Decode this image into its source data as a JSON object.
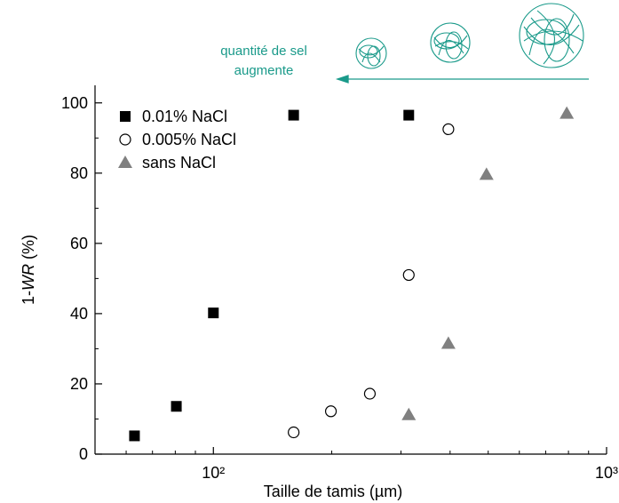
{
  "chart_data": {
    "type": "scatter",
    "x_label": "Taille de tamis (µm)",
    "y_label": [
      "1-",
      "WR",
      " (%)"
    ],
    "xscale": "log",
    "xlim": [
      50,
      1000
    ],
    "ylim": [
      0,
      105
    ],
    "xticks": [
      {
        "value": 100,
        "label": "10²"
      },
      {
        "value": 1000,
        "label": "10³"
      }
    ],
    "yticks": [
      0,
      20,
      40,
      60,
      80,
      100
    ],
    "legend": "upper left",
    "annotation": [
      "quantité de sel",
      "augmente"
    ],
    "annotation_color": "#1a9a8a",
    "series": [
      {
        "name": "0.01% NaCl",
        "marker": "square",
        "color": "#000000",
        "x": [
          63,
          80.5,
          100,
          160,
          314
        ],
        "values": [
          5.2,
          13.6,
          40.2,
          96.5,
          96.5
        ]
      },
      {
        "name": "0.005% NaCl",
        "marker": "circle",
        "color": "#000000",
        "x": [
          160,
          199,
          250,
          314,
          396
        ],
        "values": [
          6.2,
          12.2,
          17.2,
          51,
          92.5
        ]
      },
      {
        "name": "sans NaCl",
        "marker": "triangle",
        "color": "#808080",
        "x": [
          314,
          396,
          495,
          792
        ],
        "values": [
          11.2,
          31.5,
          79.6,
          97
        ]
      }
    ]
  }
}
